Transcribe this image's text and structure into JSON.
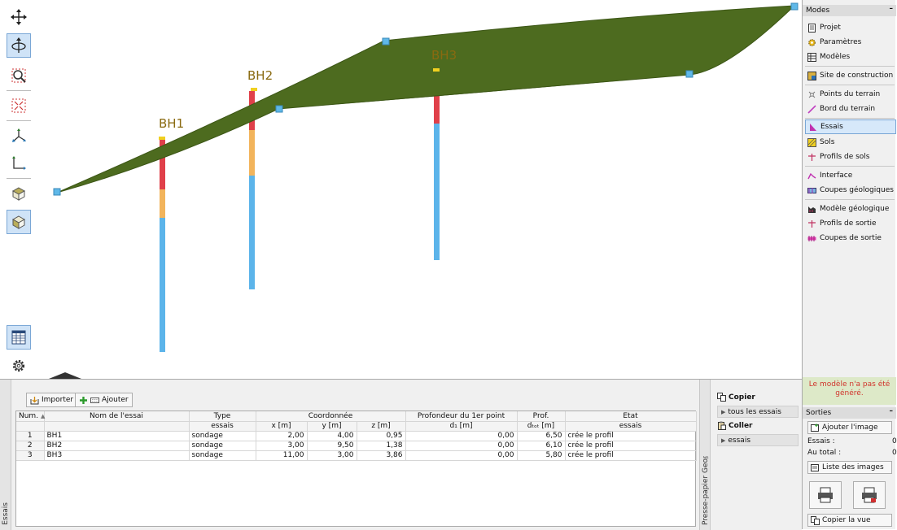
{
  "toolbar": {
    "tools": [
      "move-icon",
      "rotate-icon",
      "zoom-window-icon",
      "zoom-extents-icon",
      "axes-3d-icon",
      "axes-2d-icon",
      "top-view-icon",
      "iso-view-icon",
      "table-icon",
      "settings-icon"
    ]
  },
  "view": {
    "boreholes": [
      {
        "label": "BH1"
      },
      {
        "label": "BH2"
      },
      {
        "label": "BH3"
      }
    ],
    "colors": {
      "terrain": "#4d6b1f",
      "soil_red": "#e0404a",
      "soil_orange": "#f2b45c",
      "soil_blue": "#5cb4ea",
      "point": "#5fb8e8"
    }
  },
  "bottom_panel": {
    "tab_label": "Essais",
    "import_label": "Importer",
    "add_label": "Ajouter",
    "table": {
      "headers": {
        "num": "Num.",
        "name": "Nom de l'essai",
        "type": "Type",
        "type_sub": "essais",
        "coord": "Coordonnée",
        "x": "x [m]",
        "y": "y [m]",
        "z": "z [m]",
        "depth1": "Profondeur du 1er point",
        "depth1_sub": "d₁ [m]",
        "prof": "Prof.",
        "prof_sub": "dₜₒₜ [m]",
        "etat": "Etat",
        "etat_sub": "essais"
      },
      "rows": [
        {
          "num": "1",
          "name": "BH1",
          "type": "sondage",
          "x": "2,00",
          "y": "4,00",
          "z": "0,95",
          "d1": "0,00",
          "dtot": "6,50",
          "etat": "crée le profil"
        },
        {
          "num": "2",
          "name": "BH2",
          "type": "sondage",
          "x": "3,00",
          "y": "9,50",
          "z": "1,38",
          "d1": "0,00",
          "dtot": "6,10",
          "etat": "crée le profil"
        },
        {
          "num": "3",
          "name": "BH3",
          "type": "sondage",
          "x": "11,00",
          "y": "3,00",
          "z": "3,86",
          "d1": "0,00",
          "dtot": "5,80",
          "etat": "crée le profil"
        }
      ]
    }
  },
  "clipboard": {
    "tab_label": "Presse-papier Geo™",
    "copy_label": "Copier",
    "copy_item": "tous les essais",
    "paste_label": "Coller",
    "paste_item": "essais"
  },
  "modes": {
    "title": "Modes",
    "items": [
      {
        "label": "Projet",
        "icon": "document-icon"
      },
      {
        "label": "Paramètres",
        "icon": "gear-icon"
      },
      {
        "label": "Modèles",
        "icon": "models-icon"
      },
      {
        "label": "Site de construction",
        "icon": "site-icon"
      },
      {
        "label": "Points du terrain",
        "icon": "terrain-points-icon"
      },
      {
        "label": "Bord du terrain",
        "icon": "terrain-edge-icon"
      },
      {
        "label": "Essais",
        "icon": "tests-icon"
      },
      {
        "label": "Sols",
        "icon": "soils-icon"
      },
      {
        "label": "Profils de sols",
        "icon": "soil-profiles-icon"
      },
      {
        "label": "Interface",
        "icon": "interface-icon"
      },
      {
        "label": "Coupes géologiques",
        "icon": "geological-sections-icon"
      },
      {
        "label": "Modèle géologique",
        "icon": "geological-model-icon"
      },
      {
        "label": "Profils de sortie",
        "icon": "output-profiles-icon"
      },
      {
        "label": "Coupes de sortie",
        "icon": "output-sections-icon"
      }
    ],
    "active": "Essais"
  },
  "outputs": {
    "warning": "Le modèle n'a pas été généré.",
    "title": "Sorties",
    "add_image_label": "Ajouter l'image",
    "essais_label": "Essais :",
    "essais_value": "0",
    "total_label": "Au total :",
    "total_value": "0",
    "image_list_label": "Liste des images",
    "copy_view_label": "Copier la vue"
  }
}
